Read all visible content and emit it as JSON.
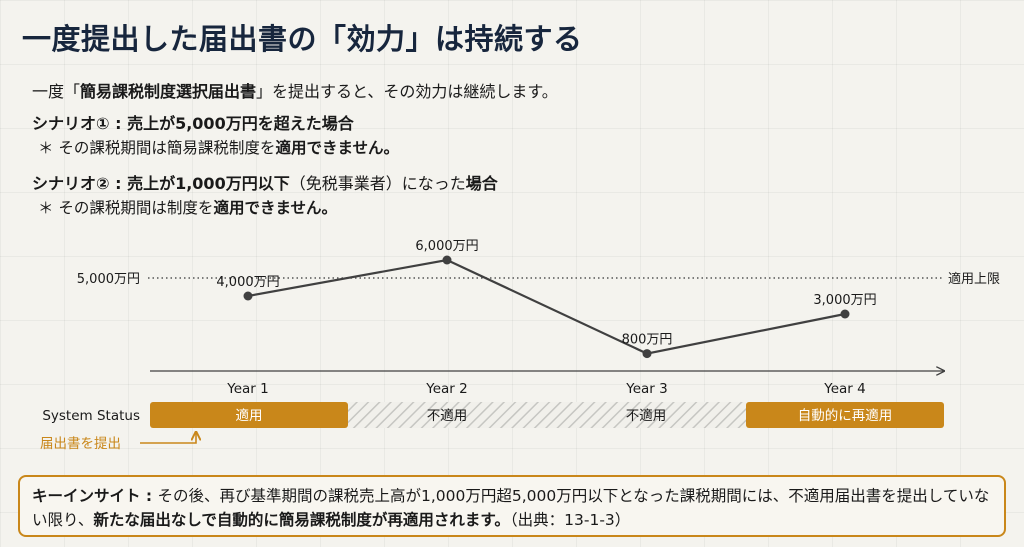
{
  "title": "一度提出した届出書の「効力」は持続する",
  "intro": {
    "prefix": "一度「",
    "emphasis": "簡易課税制度選択届出書",
    "suffix": "」を提出すると、その効力は継続します。"
  },
  "scenario1": {
    "title": "シナリオ① : 売上が5,000万円を超えた場合",
    "note_prefix": "＊ その課税期間は簡易課税制度を",
    "note_emphasis": "適用できません。"
  },
  "scenario2": {
    "title_prefix": "シナリオ② : 売上が1,000万円以下",
    "title_paren": "（免税事業者）になった",
    "title_suffix": "場合",
    "note_prefix": "＊ その課税期間は制度を",
    "note_emphasis": "適用できません。"
  },
  "chart_data": {
    "type": "line",
    "categories": [
      "Year 1",
      "Year 2",
      "Year 3",
      "Year 4"
    ],
    "values": [
      4000,
      6000,
      800,
      3000
    ],
    "value_labels": [
      "4,000万円",
      "6,000万円",
      "800万円",
      "3,000万円"
    ],
    "reference_line": {
      "value": 5000,
      "label_left": "5,000万円",
      "label_right": "適用上限"
    },
    "status_label": "System Status",
    "status": [
      {
        "label": "適用",
        "state": "applied"
      },
      {
        "label": "不適用",
        "state": "not-applied"
      },
      {
        "label": "不適用",
        "state": "not-applied"
      },
      {
        "label": "自動的に再適用",
        "state": "applied"
      }
    ],
    "annotation": "届出書を提出",
    "colors": {
      "line": "#404040",
      "applied": "#c9871a",
      "annotation": "#c9871a"
    }
  },
  "insight": {
    "label": "キーインサイト : ",
    "text1": "その後、再び基準期間の課税売上高が1,000万円超5,000万円以下となった課税期間には、不適用届出書を提出していない限り、",
    "emphasis": "新たな届出なしで自動的に簡易課税制度が再適用されます。",
    "source": "（出典：13-1-3）"
  }
}
